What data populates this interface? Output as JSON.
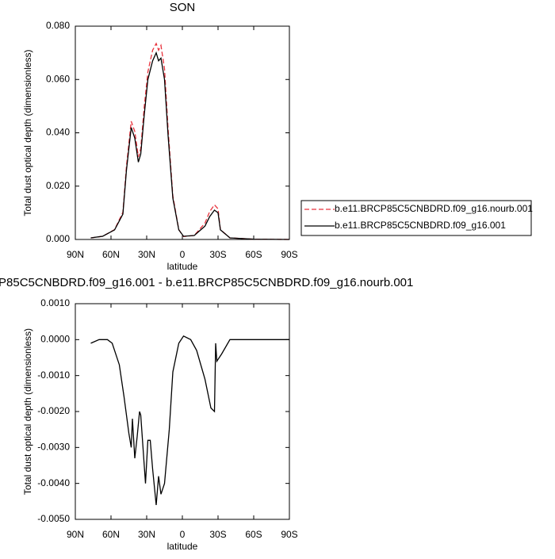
{
  "chart_data": [
    {
      "type": "line",
      "title": "SON",
      "x_label": "latitude",
      "y_label": "Total dust optical depth (dimensionless)",
      "xlim": [
        90,
        -90
      ],
      "ylim": [
        0,
        0.08
      ],
      "xticks": [
        {
          "value": 90,
          "label": "90N"
        },
        {
          "value": 60,
          "label": "60N"
        },
        {
          "value": 30,
          "label": "30N"
        },
        0,
        {
          "value": -30,
          "label": "30S"
        },
        {
          "value": -60,
          "label": "60S"
        },
        {
          "value": -90,
          "label": "90S"
        }
      ],
      "yticks": [
        {
          "value": 0,
          "label": "0.000"
        },
        {
          "value": 0.02,
          "label": "0.020"
        },
        {
          "value": 0.04,
          "label": "0.040"
        },
        {
          "value": 0.06,
          "label": "0.060"
        },
        {
          "value": 0.08,
          "label": "0.080"
        }
      ],
      "x": [
        77,
        67,
        57,
        50,
        47,
        43,
        40,
        37,
        35,
        32,
        29,
        25,
        22,
        20,
        18,
        15,
        12,
        8,
        3,
        -1,
        -10,
        -19,
        -23,
        -27,
        -30,
        -32,
        -40,
        -60,
        -90
      ],
      "series": [
        {
          "name": "b.e11.BRCP85C5CNBDRD.f09_g16.nourb.001",
          "color": "#e8323c",
          "dash": true,
          "values": [
            0.0006,
            0.0012,
            0.0037,
            0.0102,
            0.0275,
            0.0443,
            0.0405,
            0.031,
            0.034,
            0.05,
            0.0628,
            0.071,
            0.0735,
            0.071,
            0.0728,
            0.064,
            0.0415,
            0.0164,
            0.0037,
            0.0011,
            0.0015,
            0.0061,
            0.0105,
            0.013,
            0.0115,
            0.0037,
            0.0006,
            0.0001,
            0
          ]
        },
        {
          "name": "b.e11.BRCP85C5CNBDRD.f09_g16.001",
          "color": "#000000",
          "dash": false,
          "values": [
            0.0006,
            0.0012,
            0.0036,
            0.0095,
            0.026,
            0.042,
            0.038,
            0.029,
            0.032,
            0.047,
            0.06,
            0.067,
            0.07,
            0.067,
            0.068,
            0.06,
            0.039,
            0.0155,
            0.0036,
            0.0012,
            0.0015,
            0.005,
            0.0086,
            0.011,
            0.01,
            0.0036,
            0.0006,
            0.0001,
            0
          ]
        }
      ]
    },
    {
      "type": "line",
      "title": "P85C5CNBDRD.f09_g16.001 - b.e11.BRCP85C5CNBDRD.f09_g16.nourb.001",
      "x_label": "latitude",
      "y_label": "Total dust optical depth (dimensionless)",
      "xlim": [
        90,
        -90
      ],
      "ylim": [
        -0.005,
        0.001
      ],
      "xticks": [
        {
          "value": 90,
          "label": "90N"
        },
        {
          "value": 60,
          "label": "60N"
        },
        {
          "value": 30,
          "label": "30N"
        },
        0,
        {
          "value": -30,
          "label": "30S"
        },
        {
          "value": -60,
          "label": "60S"
        },
        {
          "value": -90,
          "label": "90S"
        }
      ],
      "yticks": [
        {
          "value": -0.005,
          "label": "-0.0050"
        },
        {
          "value": -0.004,
          "label": "-0.0040"
        },
        {
          "value": -0.003,
          "label": "-0.0030"
        },
        {
          "value": -0.002,
          "label": "-0.0020"
        },
        {
          "value": -0.001,
          "label": "-0.0010"
        },
        {
          "value": 0,
          "label": "0.0000"
        },
        {
          "value": 0.001,
          "label": "0.0010"
        }
      ],
      "x": [
        77,
        70,
        63,
        59,
        53,
        49,
        45,
        43,
        42,
        40,
        38,
        36,
        35,
        31,
        29,
        27,
        25,
        22,
        20,
        18,
        15,
        11,
        8,
        3,
        -1,
        -7,
        -12,
        -19,
        -24,
        -27,
        -28,
        -29,
        -33,
        -40,
        -53,
        -90
      ],
      "series": [
        {
          "color": "#000000",
          "dash": false,
          "values": [
            -0.0001,
            0,
            0,
            -0.0001,
            -0.0007,
            -0.0016,
            -0.0026,
            -0.003,
            -0.0022,
            -0.0033,
            -0.0027,
            -0.002,
            -0.0021,
            -0.004,
            -0.0028,
            -0.0028,
            -0.0036,
            -0.0046,
            -0.0038,
            -0.0043,
            -0.004,
            -0.0025,
            -0.0009,
            -0.0001,
            0.0001,
            0,
            -0.0003,
            -0.0011,
            -0.0019,
            -0.002,
            -0.0001,
            -0.0006,
            -0.0004,
            0,
            0,
            0
          ]
        }
      ]
    }
  ]
}
